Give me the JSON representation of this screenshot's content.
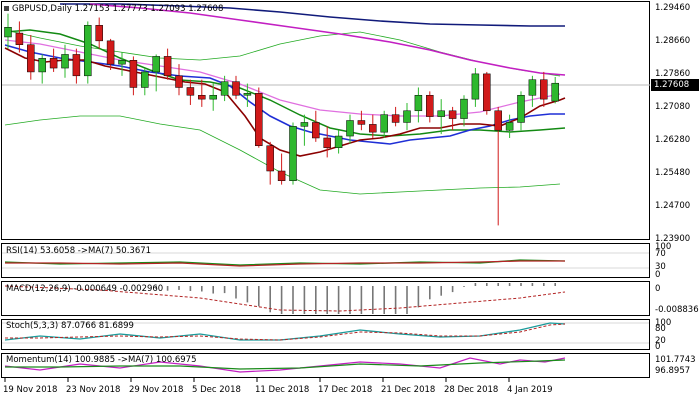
{
  "header": {
    "symbol": "GBPUSD,Daily",
    "open": "1.27153",
    "high": "1.27773",
    "low": "1.27093",
    "close": "1.27608"
  },
  "price_axis": {
    "labels": [
      "1.29460",
      "1.28660",
      "1.27860",
      "1.27080",
      "1.26280",
      "1.25480",
      "1.24700",
      "1.23900"
    ],
    "current_price": "1.27608"
  },
  "indicators": {
    "rsi": {
      "label": "RSI(14) 53.6058 ->MA(7) 50.3671",
      "axis": [
        "100",
        "70",
        "30",
        "0"
      ]
    },
    "macd": {
      "label": "MACD(12,26,9) -0.000649 -0.002960",
      "axis": [
        "0",
        "-0.008836"
      ]
    },
    "stoch": {
      "label": "Stoch(5,3,3) 87.0766 81.6899",
      "axis": [
        "100",
        "80",
        "20",
        "0"
      ]
    },
    "momentum": {
      "label": "Momentum(14) 100.9885 ->MA(7) 100.6975",
      "axis": [
        "101.7743",
        "96.8957"
      ]
    }
  },
  "dates": [
    "19 Nov 2018",
    "23 Nov 2018",
    "29 Nov 2018",
    "5 Dec 2018",
    "11 Dec 2018",
    "17 Dec 2018",
    "21 Dec 2018",
    "28 Dec 2018",
    "4 Jan 2019"
  ],
  "colors": {
    "bull": "#2eb82e",
    "bear": "#d11a1a",
    "ma_blue": "#1f2fd6",
    "ma_maroon": "#8b0000",
    "ma_green": "#138a13",
    "ma_pink": "#e070e0",
    "ma_navy": "#101a7a",
    "ma_magenta": "#c21fc2",
    "band_green": "#22aa22"
  },
  "chart_data": {
    "type": "candlestick",
    "title": "GBPUSD,Daily",
    "ylim": [
      1.236,
      1.297
    ],
    "candles": [
      {
        "o": 1.288,
        "h": 1.294,
        "l": 1.285,
        "c": 1.2905
      },
      {
        "o": 1.289,
        "h": 1.292,
        "l": 1.284,
        "c": 1.286
      },
      {
        "o": 1.286,
        "h": 1.2885,
        "l": 1.277,
        "c": 1.279
      },
      {
        "o": 1.279,
        "h": 1.2835,
        "l": 1.276,
        "c": 1.2825
      },
      {
        "o": 1.2825,
        "h": 1.285,
        "l": 1.279,
        "c": 1.28
      },
      {
        "o": 1.28,
        "h": 1.286,
        "l": 1.2775,
        "c": 1.2835
      },
      {
        "o": 1.2835,
        "h": 1.285,
        "l": 1.276,
        "c": 1.278
      },
      {
        "o": 1.278,
        "h": 1.292,
        "l": 1.276,
        "c": 1.291
      },
      {
        "o": 1.291,
        "h": 1.293,
        "l": 1.285,
        "c": 1.287
      },
      {
        "o": 1.287,
        "h": 1.2875,
        "l": 1.2795,
        "c": 1.281
      },
      {
        "o": 1.281,
        "h": 1.284,
        "l": 1.278,
        "c": 1.282
      },
      {
        "o": 1.282,
        "h": 1.283,
        "l": 1.273,
        "c": 1.275
      },
      {
        "o": 1.275,
        "h": 1.28,
        "l": 1.273,
        "c": 1.279
      },
      {
        "o": 1.279,
        "h": 1.2835,
        "l": 1.274,
        "c": 1.283
      },
      {
        "o": 1.283,
        "h": 1.285,
        "l": 1.277,
        "c": 1.278
      },
      {
        "o": 1.278,
        "h": 1.281,
        "l": 1.273,
        "c": 1.275
      },
      {
        "o": 1.275,
        "h": 1.277,
        "l": 1.2705,
        "c": 1.273
      },
      {
        "o": 1.273,
        "h": 1.277,
        "l": 1.27,
        "c": 1.272
      },
      {
        "o": 1.272,
        "h": 1.276,
        "l": 1.269,
        "c": 1.273
      },
      {
        "o": 1.273,
        "h": 1.278,
        "l": 1.2715,
        "c": 1.2765
      },
      {
        "o": 1.2765,
        "h": 1.278,
        "l": 1.272,
        "c": 1.273
      },
      {
        "o": 1.273,
        "h": 1.276,
        "l": 1.27,
        "c": 1.2735
      },
      {
        "o": 1.2735,
        "h": 1.275,
        "l": 1.2595,
        "c": 1.26
      },
      {
        "o": 1.26,
        "h": 1.261,
        "l": 1.25,
        "c": 1.2535
      },
      {
        "o": 1.2535,
        "h": 1.258,
        "l": 1.25,
        "c": 1.251
      },
      {
        "o": 1.251,
        "h": 1.266,
        "l": 1.25,
        "c": 1.265
      },
      {
        "o": 1.265,
        "h": 1.268,
        "l": 1.26,
        "c": 1.266
      },
      {
        "o": 1.266,
        "h": 1.269,
        "l": 1.261,
        "c": 1.262
      },
      {
        "o": 1.262,
        "h": 1.265,
        "l": 1.257,
        "c": 1.2595
      },
      {
        "o": 1.2595,
        "h": 1.264,
        "l": 1.258,
        "c": 1.2625
      },
      {
        "o": 1.2625,
        "h": 1.268,
        "l": 1.2605,
        "c": 1.2665
      },
      {
        "o": 1.2665,
        "h": 1.269,
        "l": 1.264,
        "c": 1.2655
      },
      {
        "o": 1.2655,
        "h": 1.268,
        "l": 1.262,
        "c": 1.2635
      },
      {
        "o": 1.2635,
        "h": 1.269,
        "l": 1.262,
        "c": 1.268
      },
      {
        "o": 1.268,
        "h": 1.27,
        "l": 1.265,
        "c": 1.266
      },
      {
        "o": 1.266,
        "h": 1.271,
        "l": 1.264,
        "c": 1.269
      },
      {
        "o": 1.269,
        "h": 1.275,
        "l": 1.266,
        "c": 1.273
      },
      {
        "o": 1.273,
        "h": 1.274,
        "l": 1.266,
        "c": 1.2675
      },
      {
        "o": 1.2675,
        "h": 1.272,
        "l": 1.263,
        "c": 1.269
      },
      {
        "o": 1.269,
        "h": 1.27,
        "l": 1.264,
        "c": 1.267
      },
      {
        "o": 1.267,
        "h": 1.273,
        "l": 1.265,
        "c": 1.272
      },
      {
        "o": 1.272,
        "h": 1.28,
        "l": 1.27,
        "c": 1.2785
      },
      {
        "o": 1.2785,
        "h": 1.279,
        "l": 1.268,
        "c": 1.269
      },
      {
        "o": 1.269,
        "h": 1.27,
        "l": 1.2395,
        "c": 1.264
      },
      {
        "o": 1.264,
        "h": 1.268,
        "l": 1.262,
        "c": 1.266
      },
      {
        "o": 1.266,
        "h": 1.274,
        "l": 1.264,
        "c": 1.273
      },
      {
        "o": 1.273,
        "h": 1.278,
        "l": 1.27,
        "c": 1.277
      },
      {
        "o": 1.277,
        "h": 1.279,
        "l": 1.27,
        "c": 1.272
      },
      {
        "o": 1.2715,
        "h": 1.2777,
        "l": 1.2709,
        "c": 1.2761
      }
    ]
  }
}
